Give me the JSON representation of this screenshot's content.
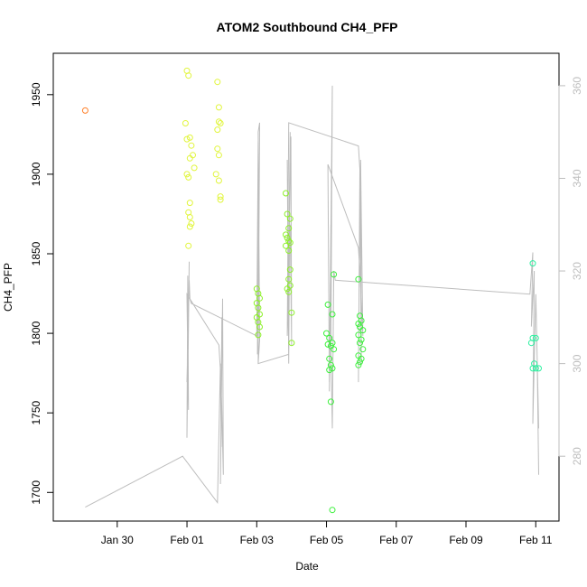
{
  "chart_data": {
    "type": "scatter",
    "title": "ATOM2 Southbound CH4_PFP",
    "xlabel": "Date",
    "ylabel": "CH4_PFP",
    "x_is_date": true,
    "xlim": [
      "2017-01-28T04:00",
      "2017-02-11T16:00"
    ],
    "ylim": [
      1682,
      1976
    ],
    "x_ticks": [
      {
        "label": "Jan 30",
        "date": "2017-01-30"
      },
      {
        "label": "Feb 01",
        "date": "2017-02-01"
      },
      {
        "label": "Feb 03",
        "date": "2017-02-03"
      },
      {
        "label": "Feb 05",
        "date": "2017-02-05"
      },
      {
        "label": "Feb 07",
        "date": "2017-02-07"
      },
      {
        "label": "Feb 09",
        "date": "2017-02-09"
      },
      {
        "label": "Feb 11",
        "date": "2017-02-11"
      }
    ],
    "y_ticks": [
      1700,
      1750,
      1800,
      1850,
      1900,
      1950
    ],
    "secondary_axis": {
      "color": "#bdbdbd",
      "ylim": [
        266,
        367
      ],
      "ticks": [
        280,
        300,
        320,
        340,
        360
      ]
    },
    "grid": false,
    "legend": "none",
    "series": [
      {
        "color": "#ff7f27",
        "points": [
          [
            "2017-01-29T02:00",
            1940
          ]
        ]
      },
      {
        "color": "#e1f53c",
        "points": [
          [
            "2017-02-01T00:00",
            1965
          ],
          [
            "2017-02-01T01:00",
            1962
          ],
          [
            "2017-01-31T23:00",
            1932
          ],
          [
            "2017-02-01T02:00",
            1923
          ],
          [
            "2017-02-01T00:00",
            1922
          ],
          [
            "2017-02-01T03:00",
            1918
          ],
          [
            "2017-02-01T04:00",
            1912
          ],
          [
            "2017-02-01T02:00",
            1910
          ],
          [
            "2017-02-01T05:00",
            1904
          ],
          [
            "2017-02-01T00:00",
            1900
          ],
          [
            "2017-02-01T01:00",
            1898
          ],
          [
            "2017-02-01T02:00",
            1882
          ],
          [
            "2017-02-01T01:00",
            1876
          ],
          [
            "2017-02-01T02:00",
            1873
          ],
          [
            "2017-02-01T03:00",
            1869
          ],
          [
            "2017-02-01T02:00",
            1867
          ],
          [
            "2017-02-01T01:00",
            1855
          ],
          [
            "2017-02-01T21:00",
            1958
          ],
          [
            "2017-02-01T22:00",
            1942
          ],
          [
            "2017-02-01T22:00",
            1933
          ],
          [
            "2017-02-01T23:00",
            1932
          ],
          [
            "2017-02-01T21:00",
            1928
          ],
          [
            "2017-02-01T21:00",
            1916
          ],
          [
            "2017-02-01T22:00",
            1912
          ],
          [
            "2017-02-01T20:00",
            1900
          ],
          [
            "2017-02-01T22:00",
            1896
          ],
          [
            "2017-02-01T23:00",
            1886
          ],
          [
            "2017-02-01T23:00",
            1884
          ]
        ]
      },
      {
        "color": "#8cf028",
        "points": [
          [
            "2017-02-03T00:00",
            1828
          ],
          [
            "2017-02-03T01:00",
            1825
          ],
          [
            "2017-02-03T02:00",
            1822
          ],
          [
            "2017-02-03T00:00",
            1819
          ],
          [
            "2017-02-03T01:00",
            1816
          ],
          [
            "2017-02-03T02:00",
            1812
          ],
          [
            "2017-02-03T00:00",
            1810
          ],
          [
            "2017-02-03T01:00",
            1807
          ],
          [
            "2017-02-03T02:00",
            1804
          ],
          [
            "2017-02-03T01:00",
            1799
          ],
          [
            "2017-02-03T20:00",
            1888
          ],
          [
            "2017-02-03T21:00",
            1875
          ],
          [
            "2017-02-03T23:00",
            1872
          ],
          [
            "2017-02-03T22:00",
            1866
          ],
          [
            "2017-02-03T20:00",
            1862
          ],
          [
            "2017-02-03T21:00",
            1860
          ],
          [
            "2017-02-03T22:00",
            1858
          ],
          [
            "2017-02-03T23:00",
            1857
          ],
          [
            "2017-02-03T20:00",
            1855
          ],
          [
            "2017-02-03T22:00",
            1852
          ],
          [
            "2017-02-03T23:00",
            1840
          ],
          [
            "2017-02-03T22:00",
            1834
          ],
          [
            "2017-02-03T23:00",
            1830
          ],
          [
            "2017-02-03T21:00",
            1828
          ],
          [
            "2017-02-03T22:00",
            1826
          ],
          [
            "2017-02-04T00:00",
            1813
          ],
          [
            "2017-02-04T00:00",
            1794
          ]
        ]
      },
      {
        "color": "#3cf03c",
        "points": [
          [
            "2017-02-05T01:00",
            1818
          ],
          [
            "2017-02-05T05:00",
            1837
          ],
          [
            "2017-02-05T04:00",
            1812
          ],
          [
            "2017-02-05T00:00",
            1800
          ],
          [
            "2017-02-05T02:00",
            1797
          ],
          [
            "2017-02-05T04:00",
            1794
          ],
          [
            "2017-02-05T01:00",
            1793
          ],
          [
            "2017-02-05T03:00",
            1792
          ],
          [
            "2017-02-05T05:00",
            1790
          ],
          [
            "2017-02-05T02:00",
            1784
          ],
          [
            "2017-02-05T03:00",
            1780
          ],
          [
            "2017-02-05T04:00",
            1778
          ],
          [
            "2017-02-05T02:00",
            1777
          ],
          [
            "2017-02-05T03:00",
            1757
          ],
          [
            "2017-02-05T04:00",
            1689
          ],
          [
            "2017-02-05T22:00",
            1834
          ],
          [
            "2017-02-05T23:00",
            1811
          ],
          [
            "2017-02-06T00:00",
            1808
          ],
          [
            "2017-02-05T22:00",
            1806
          ],
          [
            "2017-02-05T23:00",
            1804
          ],
          [
            "2017-02-06T01:00",
            1802
          ],
          [
            "2017-02-05T22:00",
            1799
          ],
          [
            "2017-02-06T00:00",
            1796
          ],
          [
            "2017-02-05T23:00",
            1794
          ],
          [
            "2017-02-06T01:00",
            1790
          ],
          [
            "2017-02-05T22:00",
            1786
          ],
          [
            "2017-02-06T00:00",
            1784
          ],
          [
            "2017-02-05T23:00",
            1782
          ],
          [
            "2017-02-05T22:00",
            1780
          ]
        ]
      },
      {
        "color": "#2df0a0",
        "points": [
          [
            "2017-02-10T22:00",
            1844
          ],
          [
            "2017-02-10T22:00",
            1797
          ],
          [
            "2017-02-11T00:00",
            1797
          ],
          [
            "2017-02-10T21:00",
            1794
          ],
          [
            "2017-02-10T23:00",
            1781
          ],
          [
            "2017-02-10T22:00",
            1778
          ],
          [
            "2017-02-11T02:00",
            1778
          ],
          [
            "2017-02-11T00:00",
            1778
          ]
        ]
      }
    ],
    "secondary_line": {
      "color": "#bdbdbd",
      "points": [
        [
          "2017-01-29T02:00",
          269
        ],
        [
          "2017-01-31T21:00",
          280
        ],
        [
          "2017-02-01T21:00",
          270
        ],
        [
          "2017-02-01T23:00",
          300
        ],
        [
          "2017-02-01T23:30",
          282
        ],
        [
          "2017-02-02T00:00",
          310
        ],
        [
          "2017-02-01T23:00",
          274
        ],
        [
          "2017-02-02T00:30",
          314
        ],
        [
          "2017-02-02T01:00",
          276
        ],
        [
          "2017-02-01T23:30",
          296
        ],
        [
          "2017-02-01T22:00",
          304
        ],
        [
          "2017-02-01T00:00",
          315
        ],
        [
          "2017-02-01T01:00",
          290
        ],
        [
          "2017-02-01T00:30",
          319
        ],
        [
          "2017-02-01T00:00",
          284
        ],
        [
          "2017-02-01T01:30",
          322
        ],
        [
          "2017-02-01T00:30",
          294
        ],
        [
          "2017-02-01T01:00",
          310
        ],
        [
          "2017-02-01T00:00",
          296
        ],
        [
          "2017-02-01T01:30",
          318
        ],
        [
          "2017-02-01T02:00",
          314
        ],
        [
          "2017-02-01T03:00",
          313
        ],
        [
          "2017-02-03T00:00",
          306
        ],
        [
          "2017-02-03T01:00",
          348
        ],
        [
          "2017-02-03T00:30",
          302
        ],
        [
          "2017-02-03T01:30",
          340
        ],
        [
          "2017-02-03T01:00",
          300
        ],
        [
          "2017-02-03T02:00",
          352
        ],
        [
          "2017-02-03T01:00",
          350
        ],
        [
          "2017-02-03T02:00",
          305
        ],
        [
          "2017-02-03T01:00",
          300
        ],
        [
          "2017-02-03T22:00",
          302
        ],
        [
          "2017-02-03T21:00",
          344
        ],
        [
          "2017-02-03T22:00",
          300
        ],
        [
          "2017-02-03T23:00",
          350
        ],
        [
          "2017-02-03T21:30",
          310
        ],
        [
          "2017-02-03T23:30",
          349
        ],
        [
          "2017-02-04T00:00",
          304
        ],
        [
          "2017-02-03T23:00",
          330
        ],
        [
          "2017-02-03T21:00",
          306
        ],
        [
          "2017-02-03T22:00",
          352
        ],
        [
          "2017-02-05T22:00",
          347
        ],
        [
          "2017-02-05T23:00",
          342
        ],
        [
          "2017-02-05T22:00",
          296
        ],
        [
          "2017-02-05T23:00",
          338
        ],
        [
          "2017-02-06T00:00",
          300
        ],
        [
          "2017-02-05T23:30",
          344
        ],
        [
          "2017-02-06T01:00",
          306
        ],
        [
          "2017-02-05T23:00",
          320
        ],
        [
          "2017-02-05T22:00",
          325
        ],
        [
          "2017-02-05T01:00",
          343
        ],
        [
          "2017-02-05T02:00",
          296
        ],
        [
          "2017-02-05T03:00",
          330
        ],
        [
          "2017-02-05T02:00",
          294
        ],
        [
          "2017-02-05T04:00",
          360
        ],
        [
          "2017-02-05T03:00",
          303
        ],
        [
          "2017-02-05T04:00",
          286
        ],
        [
          "2017-02-05T05:00",
          320
        ],
        [
          "2017-02-05T06:00",
          318
        ],
        [
          "2017-02-10T20:00",
          315
        ],
        [
          "2017-02-10T22:00",
          324
        ],
        [
          "2017-02-10T21:00",
          308
        ],
        [
          "2017-02-10T23:00",
          320
        ],
        [
          "2017-02-10T22:00",
          287
        ],
        [
          "2017-02-11T00:00",
          315
        ],
        [
          "2017-02-11T02:00",
          286
        ],
        [
          "2017-02-11T01:00",
          300
        ],
        [
          "2017-02-11T02:00",
          276
        ]
      ]
    }
  }
}
